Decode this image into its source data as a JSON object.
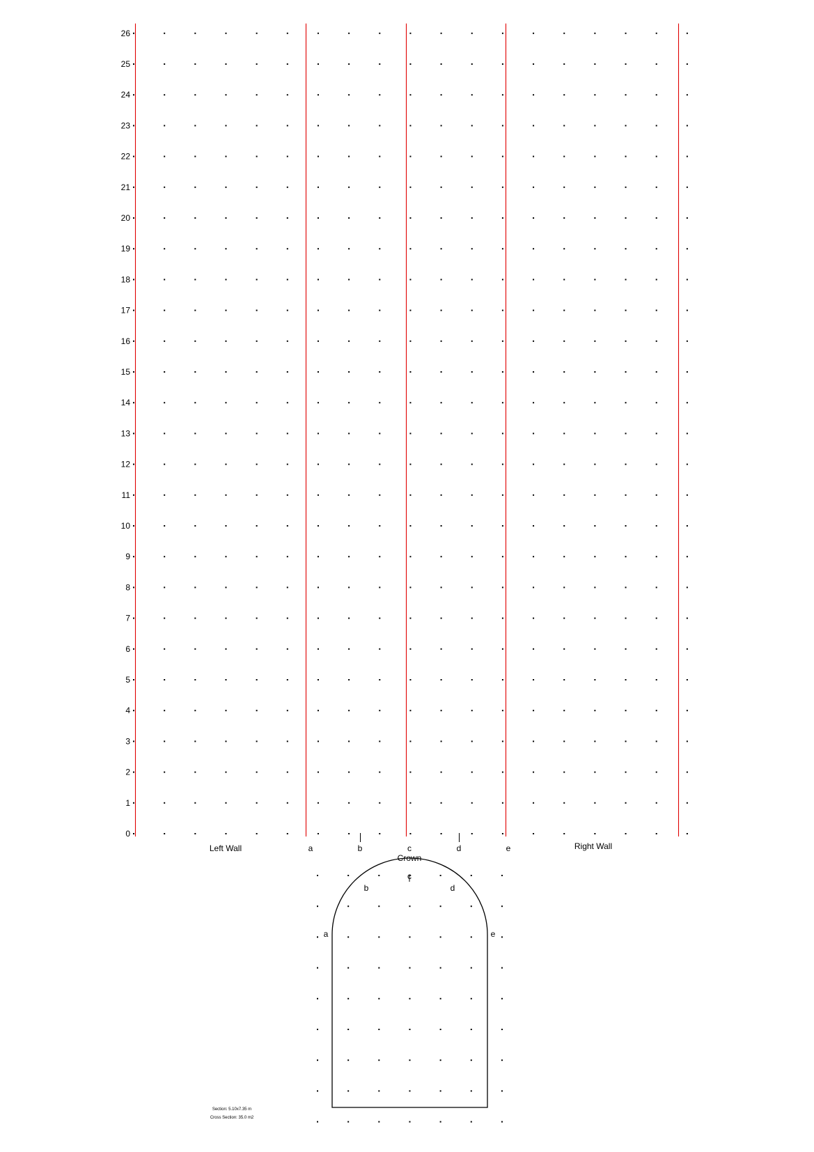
{
  "colors": {
    "background": "#ffffff",
    "ink": "#000000",
    "wall_boundary": "#e00000"
  },
  "development_grid": {
    "y_ticks": [
      "0",
      "1",
      "2",
      "3",
      "4",
      "5",
      "6",
      "7",
      "8",
      "9",
      "10",
      "11",
      "12",
      "13",
      "14",
      "15",
      "16",
      "17",
      "18",
      "19",
      "20",
      "21",
      "22",
      "23",
      "24",
      "25",
      "26"
    ],
    "crown_points": [
      "a",
      "b",
      "c",
      "d",
      "e"
    ],
    "left_wall_label": "Left Wall",
    "right_wall_label": "Right Wall",
    "crown_label": "Crown"
  },
  "cross_section": {
    "point_labels": [
      "a",
      "b",
      "c",
      "d",
      "e"
    ],
    "info": {
      "section": "Section: 5.10x7.35 m",
      "area": "Cross Section: 35.0 m2"
    }
  }
}
